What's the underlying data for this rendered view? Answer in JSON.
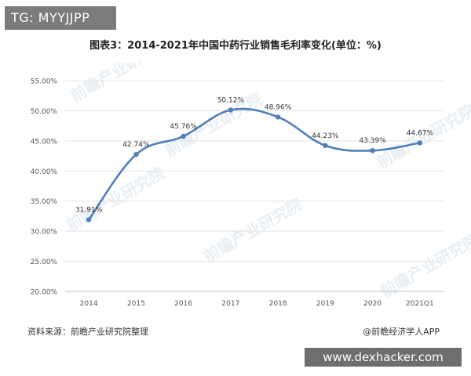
{
  "watermark_badge": "TG: MYYJJPP",
  "footer_banner": "www.dexhacker.com",
  "source_note": "资料来源：前瞻产业研究院整理",
  "credit": "@前瞻经济学人APP",
  "colors": {
    "line": "#4f7fb8",
    "grid": "#e3e3e3",
    "axis": "#bfbfbf",
    "badge": "#7b7b7b"
  },
  "chart_data": {
    "type": "line",
    "title": "图表3：2014-2021年中国中药行业销售毛利率变化(单位：%)",
    "xlabel": "",
    "ylabel": "",
    "categories": [
      "2014",
      "2015",
      "2016",
      "2017",
      "2018",
      "2019",
      "2020",
      "2021Q1"
    ],
    "series": [
      {
        "values": [
          31.91,
          42.74,
          45.76,
          50.12,
          48.96,
          44.23,
          43.39,
          44.67
        ]
      }
    ],
    "data_labels": [
      "31.91%",
      "42.74%",
      "45.76%",
      "50.12%",
      "48.96%",
      "44.23%",
      "43.39%",
      "44.67%"
    ],
    "yticks": [
      "20.00%",
      "25.00%",
      "30.00%",
      "35.00%",
      "40.00%",
      "45.00%",
      "50.00%",
      "55.00%"
    ],
    "ylim": [
      20,
      55
    ],
    "grid": true,
    "smooth": true
  }
}
